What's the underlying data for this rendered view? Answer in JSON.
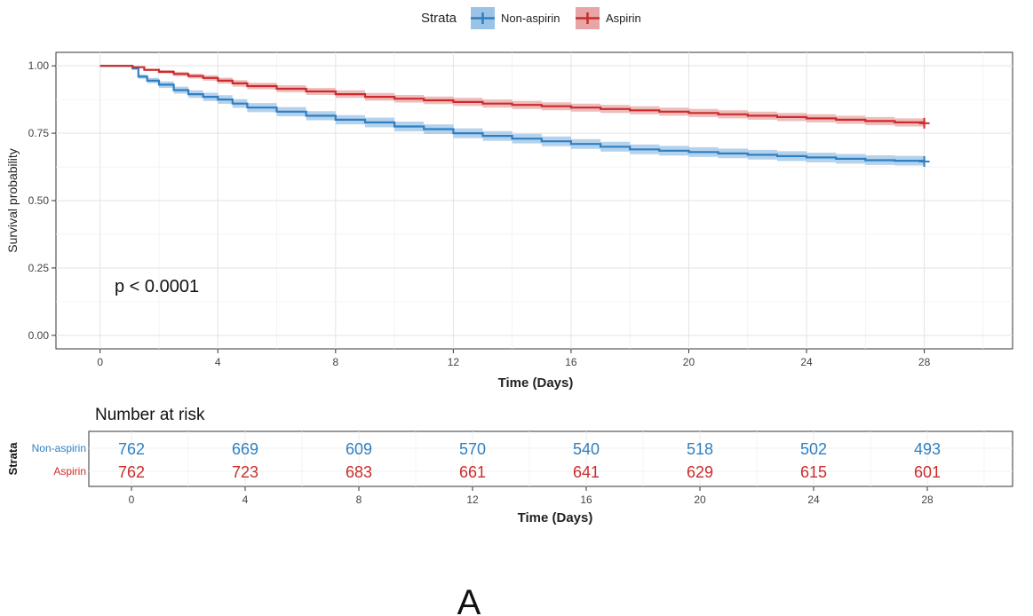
{
  "chart_data": [
    {
      "type": "line",
      "subtype": "kaplan-meier",
      "title": "",
      "xlabel": "Time (Days)",
      "ylabel": "Survival probability",
      "xlim": [
        -1.5,
        31
      ],
      "ylim": [
        -0.05,
        1.05
      ],
      "x_ticks": [
        0,
        4,
        8,
        12,
        16,
        20,
        24,
        28
      ],
      "y_ticks": [
        0,
        0.25,
        0.5,
        0.75,
        1.0
      ],
      "y_tick_labels": [
        "0.00",
        "0.25",
        "0.50",
        "0.75",
        "1.00"
      ],
      "grid": true,
      "legend": {
        "title": "Strata",
        "position": "top",
        "entries": [
          "Non-aspirin",
          "Aspirin"
        ]
      },
      "annotation": "p < 0.0001",
      "annotation_at": [
        0.6,
        0.19
      ],
      "series": [
        {
          "name": "Non-aspirin",
          "color": "#2E7FC2",
          "band_color": "#9BC3E6",
          "x": [
            0,
            1.1,
            1.3,
            1.6,
            2,
            2.5,
            3,
            3.5,
            4,
            4.5,
            5,
            6,
            7,
            8,
            9,
            10,
            11,
            12,
            13,
            14,
            15,
            16,
            17,
            18,
            19,
            20,
            21,
            22,
            23,
            24,
            25,
            26,
            27,
            28
          ],
          "y": [
            1.0,
            0.99,
            0.96,
            0.945,
            0.93,
            0.91,
            0.895,
            0.885,
            0.875,
            0.86,
            0.845,
            0.83,
            0.815,
            0.8,
            0.79,
            0.775,
            0.765,
            0.75,
            0.74,
            0.73,
            0.72,
            0.71,
            0.7,
            0.69,
            0.685,
            0.68,
            0.675,
            0.67,
            0.665,
            0.66,
            0.655,
            0.65,
            0.648,
            0.645
          ],
          "ci_halfwidth": [
            0,
            0.004,
            0.008,
            0.01,
            0.012,
            0.013,
            0.014,
            0.015,
            0.016,
            0.016,
            0.017,
            0.017,
            0.017,
            0.017,
            0.018,
            0.018,
            0.018,
            0.018,
            0.018,
            0.018,
            0.018,
            0.018,
            0.018,
            0.018,
            0.018,
            0.018,
            0.018,
            0.018,
            0.018,
            0.018,
            0.018,
            0.018,
            0.018,
            0.018
          ],
          "censor_mark_at": [
            28,
            0.645
          ]
        },
        {
          "name": "Aspirin",
          "color": "#CC2B2B",
          "band_color": "#E8A5A5",
          "x": [
            0,
            1.1,
            1.5,
            2,
            2.5,
            3,
            3.5,
            4,
            4.5,
            5,
            6,
            7,
            8,
            9,
            10,
            11,
            12,
            13,
            14,
            15,
            16,
            17,
            18,
            19,
            20,
            21,
            22,
            23,
            24,
            25,
            26,
            27,
            28
          ],
          "y": [
            1.0,
            0.995,
            0.985,
            0.978,
            0.97,
            0.962,
            0.955,
            0.945,
            0.935,
            0.925,
            0.915,
            0.905,
            0.895,
            0.885,
            0.878,
            0.872,
            0.866,
            0.86,
            0.855,
            0.85,
            0.845,
            0.84,
            0.835,
            0.83,
            0.825,
            0.82,
            0.815,
            0.81,
            0.805,
            0.8,
            0.795,
            0.79,
            0.787
          ],
          "ci_halfwidth": [
            0,
            0.002,
            0.004,
            0.006,
            0.008,
            0.009,
            0.01,
            0.011,
            0.012,
            0.012,
            0.013,
            0.013,
            0.014,
            0.014,
            0.014,
            0.014,
            0.015,
            0.015,
            0.015,
            0.015,
            0.015,
            0.015,
            0.015,
            0.015,
            0.015,
            0.015,
            0.015,
            0.015,
            0.015,
            0.015,
            0.015,
            0.015,
            0.015
          ],
          "censor_mark_at": [
            28,
            0.787
          ]
        }
      ]
    },
    {
      "type": "table",
      "title": "Number at risk",
      "xlabel": "Time (Days)",
      "ylabel": "Strata",
      "xlim": [
        -1.5,
        31
      ],
      "x_ticks": [
        0,
        4,
        8,
        12,
        16,
        20,
        24,
        28
      ],
      "rows": [
        {
          "name": "Non-aspirin",
          "color": "#2E7FC2",
          "values": [
            762,
            669,
            609,
            570,
            540,
            518,
            502,
            493
          ]
        },
        {
          "name": "Aspirin",
          "color": "#CC2B2B",
          "values": [
            762,
            723,
            683,
            661,
            641,
            629,
            615,
            601
          ]
        }
      ]
    }
  ],
  "figure_label": "A"
}
